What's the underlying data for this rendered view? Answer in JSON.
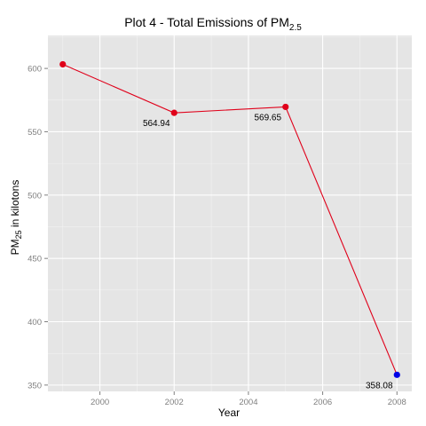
{
  "chart_data": {
    "type": "line",
    "title": {
      "main": "Plot 4 - Total Emissions of PM",
      "subscript": "2.5"
    },
    "xlabel": "Year",
    "ylabel": {
      "main": "PM",
      "subscript": "25",
      "suffix": " in kilotons"
    },
    "x_ticks": [
      "2000",
      "2002",
      "2004",
      "2006",
      "2008"
    ],
    "y_ticks": [
      "600",
      "550",
      "500",
      "450",
      "400",
      "350"
    ],
    "xlim": [
      1998.6,
      2008.4
    ],
    "ylim": [
      345,
      626
    ],
    "grid": true,
    "line_color": "#e0001a",
    "panel_bg": "#e5e5e5",
    "grid_major_color": "#ffffff",
    "grid_minor_color": "#f2f2f2",
    "tick_label_color": "#7f7f7f",
    "series": [
      {
        "points": [
          {
            "x": 1999,
            "y": 603.24,
            "label": "",
            "color": "#e0001a"
          },
          {
            "x": 2002,
            "y": 564.94,
            "label": "564.94",
            "color": "#e0001a"
          },
          {
            "x": 2005,
            "y": 569.65,
            "label": "569.65",
            "color": "#e0001a"
          },
          {
            "x": 2008,
            "y": 358.08,
            "label": "358.08",
            "color": "#0000e6"
          }
        ]
      }
    ]
  }
}
